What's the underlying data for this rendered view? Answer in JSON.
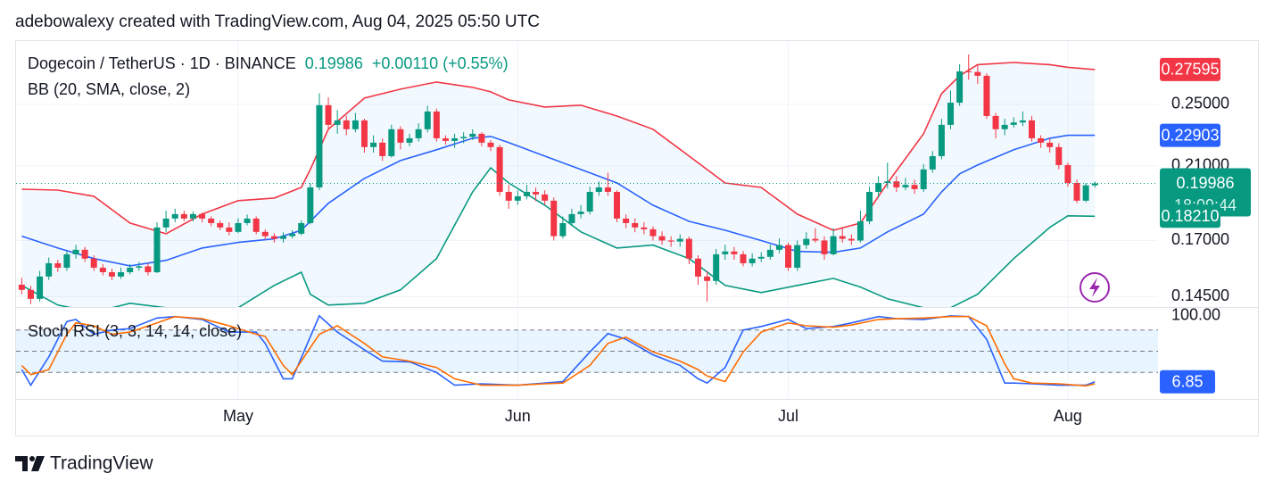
{
  "header": {
    "text": "adebowalexy created with TradingView.com, Aug 04, 2025 05:50 UTC"
  },
  "footer": {
    "brand": "TradingView"
  },
  "chart_data": [
    {
      "type": "candlestick",
      "title": "Dogecoin / TetherUS · 1D · BINANCE",
      "change_label": "+0.00110 (+0.55%)",
      "indicator": "BB (20, SMA, close, 2)",
      "countdown": "18:09:44",
      "up_color": "#089981",
      "down_color": "#f23645",
      "log": true,
      "grid": true,
      "xlim": [
        -0.63,
        126
      ],
      "xticks": [
        {
          "value": 24,
          "label": "May"
        },
        {
          "value": 55,
          "label": "Jun"
        },
        {
          "value": 85,
          "label": "Jul"
        },
        {
          "value": 116,
          "label": "Aug"
        }
      ],
      "ylim": [
        0.1408,
        0.2991
      ],
      "yticks": [
        {
          "value": 0.25,
          "label": "0.25000"
        },
        {
          "value": 0.21,
          "label": "0.21000"
        },
        {
          "value": 0.17,
          "label": "0.17000"
        },
        {
          "value": 0.145,
          "label": "0.14500"
        }
      ],
      "open": [
        0.15,
        0.1478,
        0.1441,
        0.1535,
        0.1594,
        0.1574,
        0.1635,
        0.1656,
        0.1615,
        0.1574,
        0.1554,
        0.1535,
        0.1554,
        0.1574,
        0.158,
        0.1554,
        0.1764,
        0.1809,
        0.1832,
        0.1809,
        0.1832,
        0.1809,
        0.1786,
        0.1764,
        0.1742,
        0.1786,
        0.1809,
        0.1742,
        0.1721,
        0.1708,
        0.1721,
        0.1733,
        0.1786,
        0.1976,
        0.2494,
        0.2359,
        0.2389,
        0.233,
        0.2389,
        0.2215,
        0.2243,
        0.2159,
        0.233,
        0.2243,
        0.2271,
        0.233,
        0.245,
        0.2271,
        0.2254,
        0.2271,
        0.228,
        0.23,
        0.2243,
        0.2215,
        0.1951,
        0.1903,
        0.1927,
        0.1951,
        0.1937,
        0.1903,
        0.1721,
        0.1786,
        0.1832,
        0.1845,
        0.1951,
        0.1976,
        0.1951,
        0.1809,
        0.1786,
        0.1764,
        0.1755,
        0.1721,
        0.17,
        0.1695,
        0.1708,
        0.1615,
        0.1535,
        0.1516,
        0.1635,
        0.1648,
        0.1635,
        0.1594,
        0.1615,
        0.1623,
        0.1656,
        0.1678,
        0.1574,
        0.1678,
        0.1708,
        0.17,
        0.1635,
        0.1721,
        0.1708,
        0.17,
        0.1795,
        0.1951,
        0.2001,
        0.201,
        0.1976,
        0.199,
        0.1966,
        0.2079,
        0.2159,
        0.2359,
        0.2512,
        0.2745,
        0.274,
        0.2711,
        0.2419,
        0.233,
        0.2359,
        0.2375,
        0.2389,
        0.2271,
        0.2243,
        0.2215,
        0.2105,
        0.2001,
        0.1903,
        0.19876
      ],
      "high": [
        0.153,
        0.1495,
        0.156,
        0.162,
        0.161,
        0.165,
        0.168,
        0.167,
        0.163,
        0.159,
        0.157,
        0.1575,
        0.159,
        0.16,
        0.1595,
        0.179,
        0.185,
        0.186,
        0.185,
        0.1845,
        0.184,
        0.182,
        0.18,
        0.179,
        0.181,
        0.183,
        0.182,
        0.1755,
        0.1735,
        0.174,
        0.175,
        0.18,
        0.2,
        0.258,
        0.255,
        0.246,
        0.242,
        0.244,
        0.24,
        0.229,
        0.227,
        0.236,
        0.235,
        0.23,
        0.237,
        0.249,
        0.247,
        0.229,
        0.23,
        0.231,
        0.233,
        0.231,
        0.226,
        0.223,
        0.199,
        0.196,
        0.199,
        0.1975,
        0.196,
        0.192,
        0.182,
        0.186,
        0.188,
        0.198,
        0.201,
        0.206,
        0.196,
        0.183,
        0.181,
        0.179,
        0.177,
        0.1745,
        0.172,
        0.173,
        0.172,
        0.163,
        0.156,
        0.166,
        0.168,
        0.167,
        0.165,
        0.164,
        0.1645,
        0.168,
        0.171,
        0.169,
        0.17,
        0.174,
        0.176,
        0.172,
        0.176,
        0.176,
        0.173,
        0.185,
        0.198,
        0.204,
        0.212,
        0.204,
        0.203,
        0.202,
        0.211,
        0.219,
        0.24,
        0.26,
        0.28,
        0.288,
        0.279,
        0.273,
        0.244,
        0.24,
        0.241,
        0.245,
        0.242,
        0.229,
        0.227,
        0.224,
        0.212,
        0.202,
        0.2,
        0.201
      ],
      "low": [
        0.146,
        0.142,
        0.143,
        0.152,
        0.1555,
        0.156,
        0.1615,
        0.16,
        0.156,
        0.154,
        0.152,
        0.1525,
        0.1545,
        0.156,
        0.154,
        0.155,
        0.174,
        0.179,
        0.1795,
        0.1795,
        0.179,
        0.177,
        0.175,
        0.1725,
        0.1735,
        0.1775,
        0.173,
        0.1705,
        0.169,
        0.169,
        0.171,
        0.1725,
        0.178,
        0.196,
        0.233,
        0.23,
        0.229,
        0.231,
        0.218,
        0.218,
        0.213,
        0.215,
        0.22,
        0.222,
        0.225,
        0.231,
        0.225,
        0.223,
        0.221,
        0.224,
        0.226,
        0.222,
        0.219,
        0.193,
        0.186,
        0.188,
        0.191,
        0.19,
        0.188,
        0.17,
        0.171,
        0.177,
        0.181,
        0.183,
        0.193,
        0.193,
        0.179,
        0.176,
        0.174,
        0.173,
        0.17,
        0.168,
        0.167,
        0.167,
        0.159,
        0.15,
        0.143,
        0.15,
        0.161,
        0.161,
        0.158,
        0.158,
        0.16,
        0.161,
        0.164,
        0.156,
        0.156,
        0.166,
        0.169,
        0.161,
        0.163,
        0.169,
        0.168,
        0.169,
        0.178,
        0.192,
        0.197,
        0.195,
        0.196,
        0.194,
        0.195,
        0.206,
        0.214,
        0.233,
        0.249,
        0.268,
        0.265,
        0.24,
        0.227,
        0.229,
        0.234,
        0.235,
        0.225,
        0.221,
        0.218,
        0.208,
        0.198,
        0.189,
        0.1895,
        0.1975
      ],
      "close": [
        0.1478,
        0.1441,
        0.1535,
        0.1594,
        0.1574,
        0.1635,
        0.1656,
        0.1615,
        0.1574,
        0.1554,
        0.1535,
        0.1554,
        0.1574,
        0.158,
        0.1554,
        0.1764,
        0.1809,
        0.1832,
        0.1809,
        0.1832,
        0.1809,
        0.1786,
        0.1764,
        0.1742,
        0.1786,
        0.1809,
        0.1742,
        0.1721,
        0.1708,
        0.1721,
        0.1733,
        0.1786,
        0.1976,
        0.2494,
        0.2359,
        0.2389,
        0.233,
        0.2389,
        0.2215,
        0.2243,
        0.2159,
        0.233,
        0.2243,
        0.2271,
        0.233,
        0.245,
        0.2271,
        0.2254,
        0.2271,
        0.228,
        0.23,
        0.2243,
        0.2215,
        0.1951,
        0.1903,
        0.1927,
        0.1951,
        0.1937,
        0.1903,
        0.1721,
        0.1786,
        0.1832,
        0.1845,
        0.1951,
        0.1976,
        0.1951,
        0.1809,
        0.1786,
        0.1764,
        0.1755,
        0.1721,
        0.17,
        0.1695,
        0.1708,
        0.1615,
        0.1535,
        0.1516,
        0.1635,
        0.1648,
        0.1635,
        0.1594,
        0.1615,
        0.1623,
        0.1656,
        0.1678,
        0.1574,
        0.1678,
        0.1708,
        0.17,
        0.1635,
        0.1721,
        0.1708,
        0.17,
        0.1795,
        0.1951,
        0.2001,
        0.201,
        0.1976,
        0.199,
        0.1966,
        0.2079,
        0.2159,
        0.2359,
        0.2512,
        0.2745,
        0.274,
        0.2711,
        0.2419,
        0.233,
        0.2359,
        0.2375,
        0.2389,
        0.2271,
        0.2243,
        0.2215,
        0.2105,
        0.2001,
        0.1903,
        0.19876,
        0.19986
      ],
      "series": [
        {
          "color": "#f23645",
          "x": [
            0,
            4,
            8,
            12,
            16,
            20,
            24,
            28,
            31,
            32,
            34,
            38,
            42,
            46,
            50,
            52,
            54,
            58,
            62,
            66,
            70,
            74,
            78,
            82,
            86,
            90,
            93,
            96,
            100,
            102,
            104,
            106,
            110,
            114,
            116,
            119
          ],
          "values": [
            0.1966,
            0.1961,
            0.1927,
            0.1786,
            0.1733,
            0.1832,
            0.1903,
            0.1917,
            0.1976,
            0.2079,
            0.233,
            0.2545,
            0.261,
            0.2663,
            0.2623,
            0.259,
            0.2532,
            0.2481,
            0.2494,
            0.2419,
            0.233,
            0.2159,
            0.2001,
            0.1976,
            0.1832,
            0.175,
            0.1786,
            0.2001,
            0.23,
            0.2577,
            0.2711,
            0.2798,
            0.2815,
            0.2798,
            0.2777,
            0.27595
          ]
        },
        {
          "color": "#2962ff",
          "x": [
            0,
            4,
            8,
            12,
            16,
            20,
            24,
            28,
            31,
            32,
            34,
            38,
            42,
            46,
            50,
            52,
            54,
            58,
            62,
            66,
            70,
            74,
            78,
            82,
            86,
            90,
            93,
            96,
            100,
            102,
            104,
            106,
            110,
            114,
            116,
            119
          ],
          "values": [
            0.1721,
            0.1664,
            0.1615,
            0.1582,
            0.1607,
            0.1664,
            0.1691,
            0.1708,
            0.175,
            0.1795,
            0.1889,
            0.2027,
            0.2132,
            0.2198,
            0.2271,
            0.2283,
            0.2243,
            0.2159,
            0.2079,
            0.2001,
            0.1879,
            0.1795,
            0.175,
            0.17,
            0.1648,
            0.1644,
            0.1664,
            0.1742,
            0.1832,
            0.1951,
            0.2053,
            0.2105,
            0.2198,
            0.2271,
            0.229,
            0.22903
          ]
        },
        {
          "color": "#089981",
          "x": [
            0,
            4,
            8,
            12,
            16,
            20,
            24,
            28,
            31,
            32,
            34,
            38,
            42,
            46,
            50,
            52,
            54,
            58,
            62,
            66,
            70,
            74,
            78,
            82,
            86,
            90,
            93,
            96,
            100,
            102,
            104,
            106,
            110,
            114,
            116,
            119
          ],
          "values": [
            0.1497,
            0.1416,
            0.1387,
            0.1423,
            0.1405,
            0.1387,
            0.1405,
            0.1497,
            0.1554,
            0.146,
            0.1416,
            0.1423,
            0.1478,
            0.1615,
            0.1951,
            0.2089,
            0.2001,
            0.1879,
            0.1742,
            0.1664,
            0.1678,
            0.1615,
            0.1497,
            0.1467,
            0.1497,
            0.1527,
            0.149,
            0.1441,
            0.1405,
            0.1387,
            0.1423,
            0.146,
            0.1615,
            0.1764,
            0.1823,
            0.1821
          ],
          "value_labels": [
            null,
            null,
            null,
            null,
            null,
            null,
            null,
            null,
            null,
            null,
            null,
            null,
            null,
            null,
            null,
            null,
            null,
            null,
            null,
            null,
            null,
            null,
            null,
            null,
            null,
            null,
            null,
            null,
            null,
            null,
            null,
            null,
            null,
            null,
            null,
            "0.18210"
          ]
        }
      ]
    },
    {
      "type": "line",
      "title": "Stoch RSI (3, 3, 14, 14, close)",
      "xlim": [
        -0.63,
        126
      ],
      "ylim": [
        -17.5,
        111.25
      ],
      "yticks": [
        {
          "value": 100,
          "label": "100.00"
        }
      ],
      "levels": [
        80,
        50,
        20
      ],
      "series": [
        {
          "color": "#2962ff",
          "x": [
            0,
            1,
            3,
            5,
            6,
            8,
            10,
            12,
            15,
            17,
            20,
            23,
            26,
            27,
            29,
            30,
            33,
            35,
            38,
            40,
            43,
            46,
            48,
            51,
            55,
            58,
            60,
            63,
            65,
            67,
            70,
            73,
            75,
            76,
            78,
            80,
            82,
            85,
            87,
            90,
            92,
            95,
            97,
            100,
            103,
            105,
            107,
            109,
            110,
            112,
            115,
            118,
            119
          ],
          "values": [
            24,
            2,
            42,
            92,
            95,
            74,
            80,
            82,
            97,
            99,
            95,
            77,
            77,
            61,
            11,
            11,
            100,
            77,
            52,
            36,
            35,
            20,
            2,
            4,
            2,
            5,
            7,
            49,
            75,
            67,
            45,
            30,
            11,
            5,
            27,
            80,
            85,
            95,
            82,
            85,
            90,
            99,
            96,
            95,
            100,
            99,
            67,
            5,
            5,
            4,
            2,
            2,
            6.85
          ]
        },
        {
          "color": "#ff6d00",
          "x": [
            0,
            1,
            3,
            5,
            6,
            8,
            10,
            12,
            15,
            17,
            20,
            23,
            26,
            27,
            29,
            30,
            33,
            35,
            38,
            40,
            43,
            46,
            48,
            51,
            55,
            58,
            60,
            63,
            65,
            67,
            70,
            73,
            75,
            76,
            78,
            80,
            82,
            85,
            87,
            90,
            92,
            95,
            97,
            100,
            103,
            105,
            107,
            109,
            110,
            112,
            115,
            118,
            119
          ],
          "values": [
            30,
            17,
            24,
            74,
            90,
            86,
            74,
            77,
            90,
            99,
            96,
            86,
            74,
            71,
            30,
            17,
            74,
            86,
            61,
            42,
            36,
            27,
            11,
            2,
            2,
            4,
            5,
            30,
            61,
            70,
            49,
            36,
            24,
            15,
            7,
            49,
            77,
            90,
            86,
            84,
            87,
            95,
            96,
            97,
            99,
            99,
            86,
            32,
            11,
            5,
            4,
            1,
            4
          ]
        }
      ]
    }
  ]
}
